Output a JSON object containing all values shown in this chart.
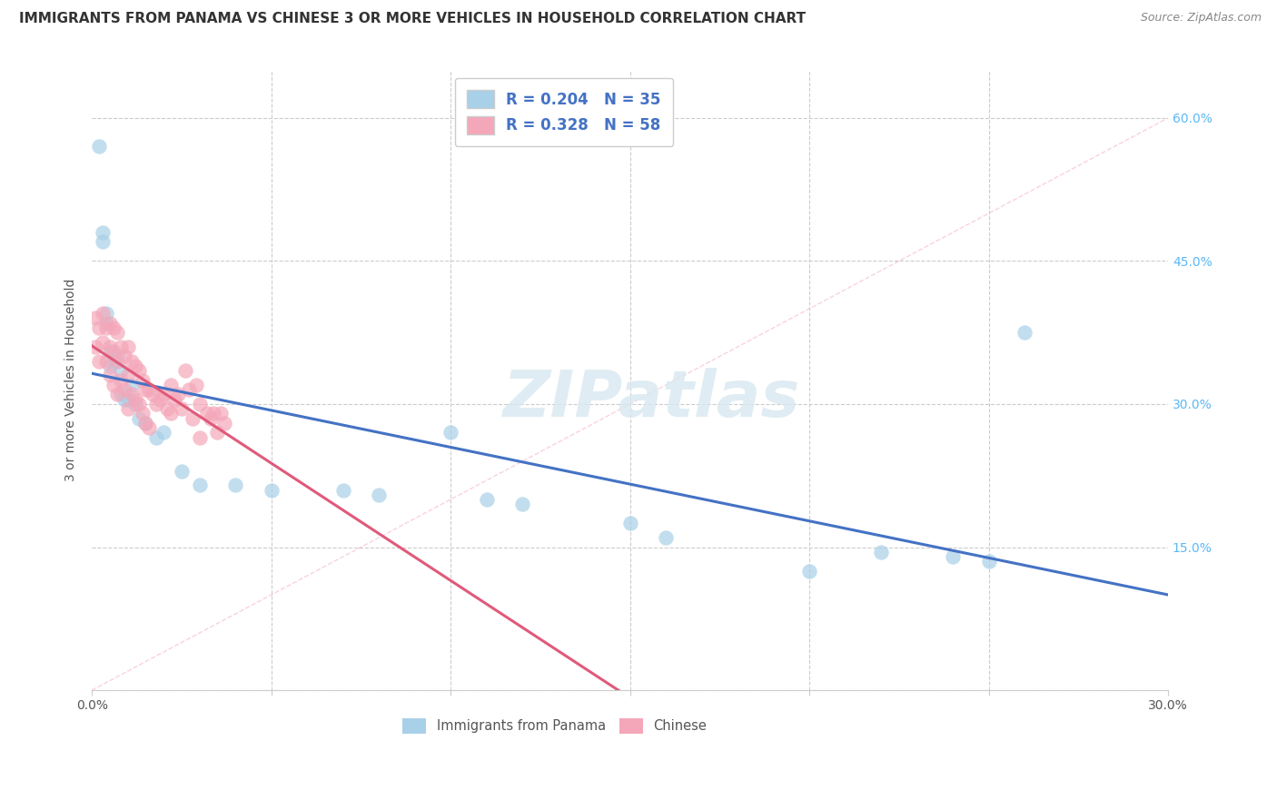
{
  "title": "IMMIGRANTS FROM PANAMA VS CHINESE 3 OR MORE VEHICLES IN HOUSEHOLD CORRELATION CHART",
  "source": "Source: ZipAtlas.com",
  "ylabel": "3 or more Vehicles in Household",
  "legend_label_1": "Immigrants from Panama",
  "legend_label_2": "Chinese",
  "R1": 0.204,
  "N1": 35,
  "R2": 0.328,
  "N2": 58,
  "color_blue": "#A8D0E8",
  "color_pink": "#F4A7B9",
  "color_blue_line": "#4472C4",
  "color_pink_line": "#E05A7A",
  "color_diag": "#F4A7B9",
  "xlim": [
    0,
    0.3
  ],
  "ylim": [
    0,
    0.65
  ],
  "x_ticks": [
    0.0,
    0.05,
    0.1,
    0.15,
    0.2,
    0.25,
    0.3
  ],
  "y_ticks": [
    0.0,
    0.15,
    0.3,
    0.45,
    0.6
  ],
  "right_tick_color": "#5BB8F5",
  "legend_text_color": "#4472C4",
  "grid_color": "#cccccc",
  "blue_x": [
    0.002,
    0.003,
    0.003,
    0.004,
    0.004,
    0.005,
    0.005,
    0.006,
    0.007,
    0.008,
    0.008,
    0.009,
    0.01,
    0.011,
    0.012,
    0.013,
    0.015,
    0.018,
    0.02,
    0.025,
    0.03,
    0.04,
    0.05,
    0.07,
    0.08,
    0.1,
    0.11,
    0.12,
    0.15,
    0.16,
    0.2,
    0.22,
    0.24,
    0.25,
    0.26
  ],
  "blue_y": [
    0.57,
    0.48,
    0.47,
    0.395,
    0.385,
    0.355,
    0.34,
    0.345,
    0.35,
    0.335,
    0.31,
    0.305,
    0.305,
    0.32,
    0.3,
    0.285,
    0.28,
    0.265,
    0.27,
    0.23,
    0.215,
    0.215,
    0.21,
    0.21,
    0.205,
    0.27,
    0.2,
    0.195,
    0.175,
    0.16,
    0.125,
    0.145,
    0.14,
    0.135,
    0.375
  ],
  "pink_x": [
    0.001,
    0.001,
    0.002,
    0.002,
    0.003,
    0.003,
    0.004,
    0.004,
    0.005,
    0.005,
    0.005,
    0.006,
    0.006,
    0.006,
    0.007,
    0.007,
    0.007,
    0.008,
    0.008,
    0.009,
    0.009,
    0.01,
    0.01,
    0.01,
    0.011,
    0.011,
    0.012,
    0.012,
    0.013,
    0.013,
    0.014,
    0.014,
    0.015,
    0.015,
    0.016,
    0.016,
    0.017,
    0.018,
    0.019,
    0.02,
    0.021,
    0.022,
    0.022,
    0.023,
    0.024,
    0.025,
    0.026,
    0.027,
    0.028,
    0.029,
    0.03,
    0.03,
    0.032,
    0.033,
    0.034,
    0.035,
    0.036,
    0.037
  ],
  "pink_y": [
    0.39,
    0.36,
    0.38,
    0.345,
    0.395,
    0.365,
    0.38,
    0.345,
    0.385,
    0.36,
    0.33,
    0.38,
    0.355,
    0.32,
    0.375,
    0.345,
    0.31,
    0.36,
    0.325,
    0.35,
    0.315,
    0.36,
    0.33,
    0.295,
    0.345,
    0.31,
    0.34,
    0.305,
    0.335,
    0.3,
    0.325,
    0.29,
    0.315,
    0.28,
    0.315,
    0.275,
    0.31,
    0.3,
    0.305,
    0.31,
    0.295,
    0.32,
    0.29,
    0.305,
    0.31,
    0.295,
    0.335,
    0.315,
    0.285,
    0.32,
    0.3,
    0.265,
    0.29,
    0.285,
    0.29,
    0.27,
    0.29,
    0.28
  ],
  "watermark": "ZIPatlas",
  "background_color": "#ffffff"
}
